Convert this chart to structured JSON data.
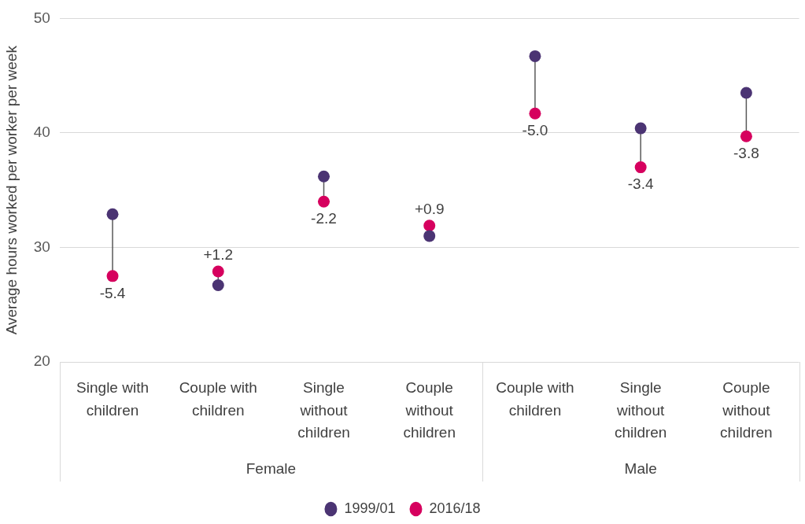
{
  "chart_data": {
    "type": "scatter",
    "ylabel": "Average hours worked per worker per week",
    "categories": [
      "Single with children",
      "Couple with children",
      "Single without children",
      "Couple without children",
      "Couple with children",
      "Single without children",
      "Couple without children"
    ],
    "series": [
      {
        "name": "1999/01",
        "color": "#4b3473",
        "values": [
          32.9,
          26.7,
          36.2,
          31.0,
          46.7,
          40.4,
          43.5
        ]
      },
      {
        "name": "2016/18",
        "color": "#d6005e",
        "values": [
          27.5,
          27.9,
          34.0,
          31.9,
          41.7,
          37.0,
          39.7
        ]
      }
    ],
    "annotations": [
      "Female",
      "Male",
      {
        "text": "-5.4",
        "y": 27.5
      },
      {
        "text": "+1.2",
        "y": 27.9
      },
      {
        "text": "-2.2",
        "y": 34.0
      },
      {
        "text": "+0.9",
        "y": 31.9
      },
      {
        "text": "-5.0",
        "y": 41.7
      },
      {
        "text": "-3.4",
        "y": 37.0
      },
      {
        "text": "-3.8",
        "y": 39.7
      }
    ],
    "ylim": [
      20,
      50
    ],
    "yticks": [
      20,
      30,
      40,
      50
    ],
    "grid": "y",
    "legend": "bottom",
    "marker": "circle"
  }
}
